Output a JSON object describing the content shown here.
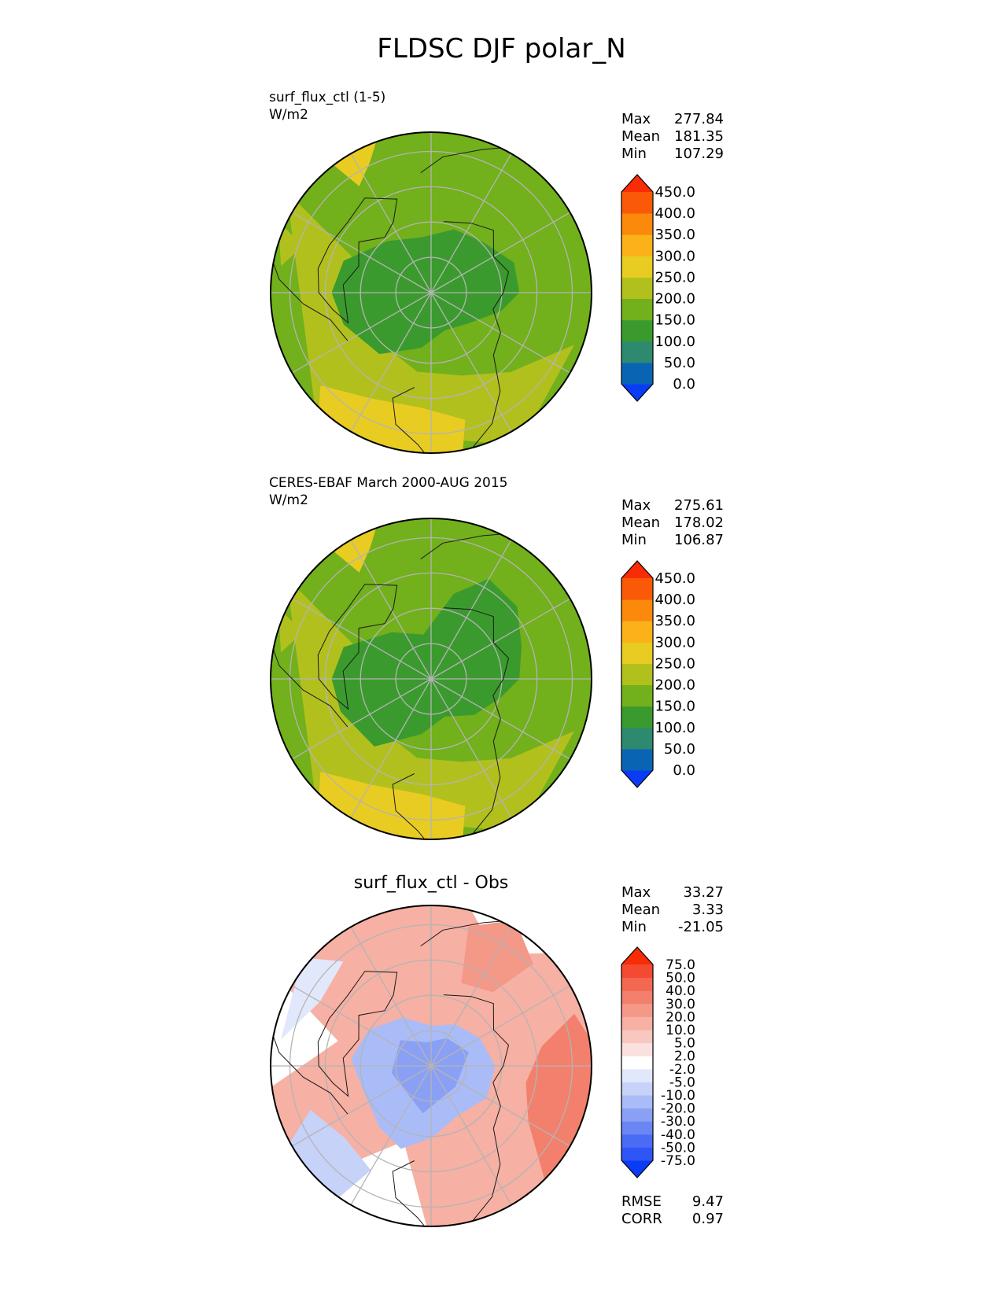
{
  "figure": {
    "title": "FLDSC DJF polar_N"
  },
  "chart_data": [
    {
      "type": "heatmap",
      "projection": "north-polar-stereographic",
      "title": "",
      "label_lines": [
        "surf_flux_ctl (1-5)",
        "W/m2"
      ],
      "stats": [
        {
          "key": "Max",
          "value": "277.84"
        },
        {
          "key": "Mean",
          "value": "181.35"
        },
        {
          "key": "Min",
          "value": "107.29"
        }
      ],
      "colorbar": {
        "levels": [
          "0.0",
          "50.0",
          "100.0",
          "150.0",
          "200.0",
          "250.0",
          "300.0",
          "350.0",
          "400.0",
          "450.0"
        ],
        "colors": [
          "#0a3cf5",
          "#0a64b4",
          "#2e8a6e",
          "#3b9a2e",
          "#72b01c",
          "#b2c01e",
          "#e8cc22",
          "#fbb21a",
          "#fb8a0c",
          "#fa5a08",
          "#f82c05"
        ],
        "extend": "both"
      }
    },
    {
      "type": "heatmap",
      "projection": "north-polar-stereographic",
      "title": "",
      "label_lines": [
        "CERES-EBAF March 2000-AUG 2015",
        "W/m2"
      ],
      "stats": [
        {
          "key": "Max",
          "value": "275.61"
        },
        {
          "key": "Mean",
          "value": "178.02"
        },
        {
          "key": "Min",
          "value": "106.87"
        }
      ],
      "colorbar": {
        "levels": [
          "0.0",
          "50.0",
          "100.0",
          "150.0",
          "200.0",
          "250.0",
          "300.0",
          "350.0",
          "400.0",
          "450.0"
        ],
        "colors": [
          "#0a3cf5",
          "#0a64b4",
          "#2e8a6e",
          "#3b9a2e",
          "#72b01c",
          "#b2c01e",
          "#e8cc22",
          "#fbb21a",
          "#fb8a0c",
          "#fa5a08",
          "#f82c05"
        ],
        "extend": "both"
      }
    },
    {
      "type": "heatmap",
      "projection": "north-polar-stereographic",
      "title": "surf_flux_ctl - Obs",
      "label_lines": [],
      "stats": [
        {
          "key": "Max",
          "value": "33.27"
        },
        {
          "key": "Mean",
          "value": "3.33"
        },
        {
          "key": "Min",
          "value": "-21.05"
        }
      ],
      "bottom_stats": [
        {
          "key": "RMSE",
          "value": "9.47"
        },
        {
          "key": "CORR",
          "value": "0.97"
        }
      ],
      "colorbar": {
        "levels": [
          "-75.0",
          "-50.0",
          "-40.0",
          "-30.0",
          "-20.0",
          "-10.0",
          "-5.0",
          "-2.0",
          "2.0",
          "5.0",
          "10.0",
          "20.0",
          "30.0",
          "40.0",
          "50.0",
          "75.0"
        ],
        "colors": [
          "#0a3cf5",
          "#2e55f5",
          "#4a6cf5",
          "#6a86f5",
          "#8aa0f5",
          "#aabcf7",
          "#c6d2f8",
          "#e2e8fb",
          "#ffffff",
          "#fbe0e0",
          "#f8c8c0",
          "#f6b0a4",
          "#f49888",
          "#f2806c",
          "#f26850",
          "#f44a32",
          "#f82c05"
        ],
        "extend": "both"
      }
    }
  ]
}
